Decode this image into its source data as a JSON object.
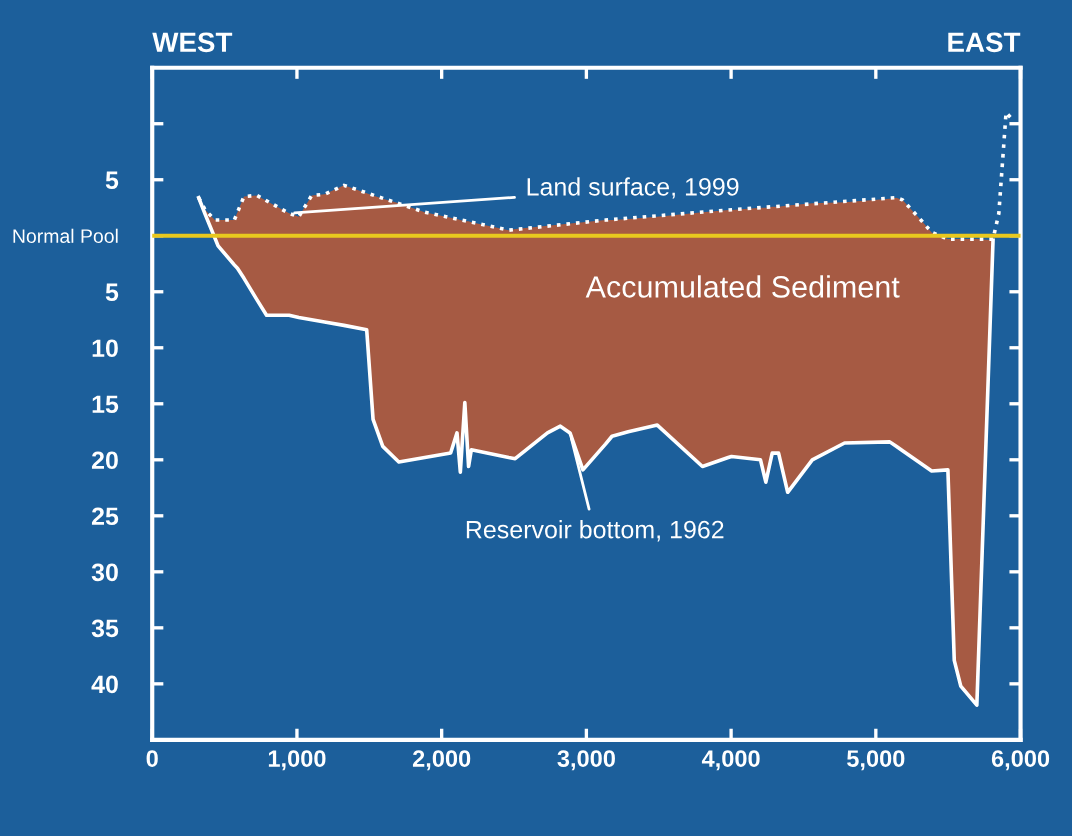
{
  "chart_data": {
    "type": "line",
    "annotations": [
      "WEST",
      "EAST",
      "Accumulated Sediment"
    ],
    "series": [
      {
        "name": "Land surface, 1999",
        "line_style": "dotted",
        "color": "#ffffff",
        "x": [
          321,
          366,
          433,
          567,
          634,
          723,
          946,
          1013,
          1102,
          1191,
          1325,
          1883,
          2463,
          3132,
          3980,
          5141,
          5185,
          5319,
          5386,
          5498,
          5810,
          5850,
          5900,
          5935
        ],
        "values": [
          3.4,
          2.3,
          1.4,
          1.4,
          3.5,
          3.6,
          2.0,
          1.7,
          3.6,
          3.7,
          4.5,
          2.1,
          0.5,
          1.4,
          2.3,
          3.4,
          3.2,
          1.3,
          0.3,
          -0.3,
          -0.3,
          2,
          11,
          10.5
        ]
      },
      {
        "name": "Reservoir bottom, 1962",
        "line_style": "solid",
        "color": "#ffffff",
        "x": [
          321,
          366,
          433,
          455,
          567,
          589,
          634,
          723,
          790,
          946,
          1013,
          1102,
          1191,
          1325,
          1482,
          1526,
          1593,
          1704,
          1883,
          2062,
          2106,
          2129,
          2160,
          2186,
          2205,
          2463,
          2508,
          2731,
          2820,
          2887,
          2976,
          3132,
          3177,
          3289,
          3490,
          3802,
          3980,
          4003,
          4203,
          4240,
          4284,
          4328,
          4391,
          4561,
          4784,
          5096,
          5141,
          5185,
          5319,
          5386,
          5498,
          5542,
          5587,
          5698,
          5810
        ],
        "values": [
          3.4,
          1.9,
          -0.2,
          -0.9,
          -2.6,
          -2.9,
          -3.8,
          -5.7,
          -7.1,
          -7.1,
          -7.3,
          -7.5,
          -7.7,
          -8.0,
          -8.4,
          -16.4,
          -18.8,
          -20.2,
          -19.8,
          -19.4,
          -17.6,
          -21.1,
          -14.9,
          -20.6,
          -19.1,
          -19.8,
          -19.9,
          -17.6,
          -17.0,
          -17.6,
          -20.9,
          -18.6,
          -17.9,
          -17.5,
          -16.9,
          -20.6,
          -19.8,
          -19.7,
          -20.0,
          -22.0,
          -19.4,
          -19.4,
          -22.9,
          -20.0,
          -18.5,
          -18.4,
          -18.8,
          -19.2,
          -20.4,
          -21.0,
          -20.9,
          -37.9,
          -40.2,
          -41.9,
          -0.4
        ],
        "lower": [
          3.4,
          1.9,
          -0.2,
          -0.9,
          -2.6,
          -2.9,
          -3.8,
          -5.7,
          -7.1,
          -7.1,
          -7.3,
          -7.5,
          -7.7,
          -8.0,
          -8.4,
          -16.4,
          -18.8,
          -20.2,
          -19.8,
          -19.4,
          -17.6,
          -21.1,
          -14.9,
          -20.6,
          -19.1,
          -19.8,
          -19.9,
          -17.6,
          -17.0,
          -17.6,
          -20.9,
          -18.6,
          -17.9,
          -17.5,
          -16.9,
          -20.6,
          -19.8,
          -19.7,
          -20.0,
          -22.0,
          -19.4,
          -19.4,
          -22.9,
          -20.0,
          -18.5,
          -18.4,
          -18.8,
          -19.2,
          -20.4,
          -21.0,
          -20.9,
          -37.9,
          -40.2,
          -41.9,
          -0.4
        ],
        "upper": [
          3.4,
          2.3,
          1.4,
          1.4,
          1.4,
          2.1,
          3.5,
          3.6,
          3.1,
          2.0,
          1.7,
          3.6,
          3.7,
          4.5,
          3.8,
          3.6,
          3.3,
          2.9,
          2.1,
          1.6,
          1.5,
          1.4,
          1.3,
          1.3,
          1.2,
          0.5,
          0.6,
          0.9,
          1.0,
          1.1,
          1.2,
          1.4,
          1.4,
          1.5,
          1.7,
          2.1,
          2.3,
          2.3,
          2.5,
          2.5,
          2.6,
          2.6,
          2.7,
          2.9,
          3.0,
          3.3,
          3.4,
          3.2,
          1.3,
          0.3,
          -0.3,
          -0.3,
          -0.3,
          -0.3,
          -0.4
        ]
      }
    ],
    "xlim": [
      0,
      6000
    ],
    "xticks": [
      0,
      {
        "value": 1000,
        "label": "1,000"
      },
      {
        "value": 2000,
        "label": "2,000"
      },
      {
        "value": 3000,
        "label": "3,000"
      },
      {
        "value": 4000,
        "label": "4,000"
      },
      {
        "value": 5000,
        "label": "5,000"
      },
      {
        "value": 6000,
        "label": "6,000"
      }
    ],
    "ylim": [
      -45,
      15
    ],
    "yticks": [
      {
        "value": 10,
        "label": null
      },
      5,
      {
        "value": 0,
        "label": "Normal Pool"
      },
      {
        "value": -5,
        "label": "5"
      },
      {
        "value": -10,
        "label": "10"
      },
      {
        "value": -15,
        "label": "15"
      },
      {
        "value": -20,
        "label": "20"
      },
      {
        "value": -25,
        "label": "25"
      },
      {
        "value": -30,
        "label": "30"
      },
      {
        "value": -35,
        "label": "35"
      },
      {
        "value": -40,
        "label": "40"
      }
    ],
    "ref_lines": [
      {
        "axis": "y",
        "value": 0,
        "color": "#e8c81e"
      }
    ],
    "grid": false
  }
}
